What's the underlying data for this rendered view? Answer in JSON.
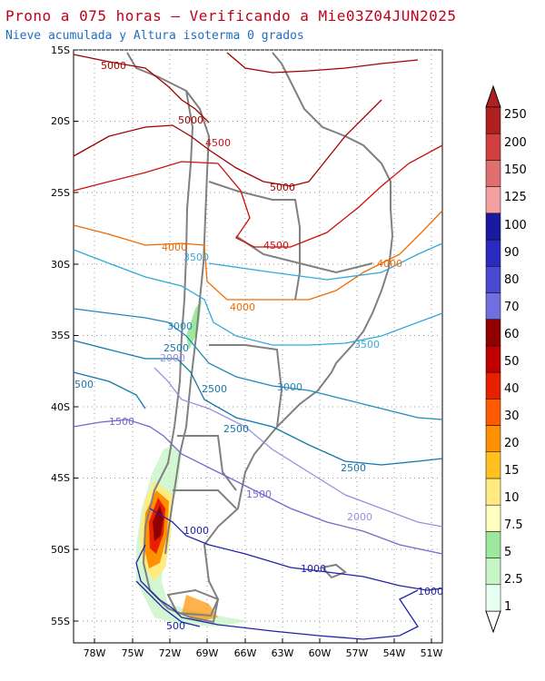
{
  "header": {
    "title": "Prono a 075 horas — Verificando a Mie03Z04JUN2025",
    "subtitle": "Nieve acumulada y Altura isoterma 0 grados"
  },
  "map": {
    "lat_labels": [
      "15S",
      "20S",
      "25S",
      "30S",
      "35S",
      "40S",
      "45S",
      "50S",
      "55S"
    ],
    "lon_labels": [
      "78W",
      "75W",
      "72W",
      "69W",
      "66W",
      "63W",
      "60W",
      "57W",
      "54W",
      "51W"
    ],
    "contour_labels": [
      {
        "text": "5000",
        "color": "#a00000"
      },
      {
        "text": "5000",
        "color": "#a00000"
      },
      {
        "text": "4500",
        "color": "#cc1010"
      },
      {
        "text": "5000",
        "color": "#a00000"
      },
      {
        "text": "4500",
        "color": "#cc1010"
      },
      {
        "text": "4000",
        "color": "#f06a00"
      },
      {
        "text": "4000",
        "color": "#f06a00"
      },
      {
        "text": "4000",
        "color": "#f06a00"
      },
      {
        "text": "3500",
        "color": "#33aadd"
      },
      {
        "text": "3500",
        "color": "#33aadd"
      },
      {
        "text": "3000",
        "color": "#2288bb"
      },
      {
        "text": "3000",
        "color": "#2288bb"
      },
      {
        "text": "2500",
        "color": "#1177aa"
      },
      {
        "text": "2500",
        "color": "#1177aa"
      },
      {
        "text": "2500",
        "color": "#1177aa"
      },
      {
        "text": "2500",
        "color": "#1177aa"
      },
      {
        "text": "500",
        "color": "#1177aa"
      },
      {
        "text": "2000",
        "color": "#9d8fe0"
      },
      {
        "text": "2000",
        "color": "#9d8fe0"
      },
      {
        "text": "1500",
        "color": "#7766cc"
      },
      {
        "text": "1500",
        "color": "#7766cc"
      },
      {
        "text": "1000",
        "color": "#2222aa"
      },
      {
        "text": "1000",
        "color": "#2222aa"
      },
      {
        "text": "1000",
        "color": "#2222aa"
      },
      {
        "text": "500",
        "color": "#2222aa"
      }
    ]
  },
  "colorbar": {
    "labels": [
      "250",
      "200",
      "150",
      "125",
      "100",
      "90",
      "80",
      "70",
      "60",
      "50",
      "40",
      "30",
      "20",
      "15",
      "10",
      "7.5",
      "5",
      "2.5",
      "1"
    ],
    "colors": [
      "#e6fff0",
      "#c8f5c8",
      "#9ee89e",
      "#ffffc0",
      "#ffeb80",
      "#ffc020",
      "#ff9000",
      "#ff5a00",
      "#e82000",
      "#c00000",
      "#900000",
      "#6f6fe0",
      "#4a4ad0",
      "#2a2ac0",
      "#1a1aa0",
      "#f5a0a0",
      "#e07070",
      "#d04040",
      "#b02020"
    ]
  }
}
